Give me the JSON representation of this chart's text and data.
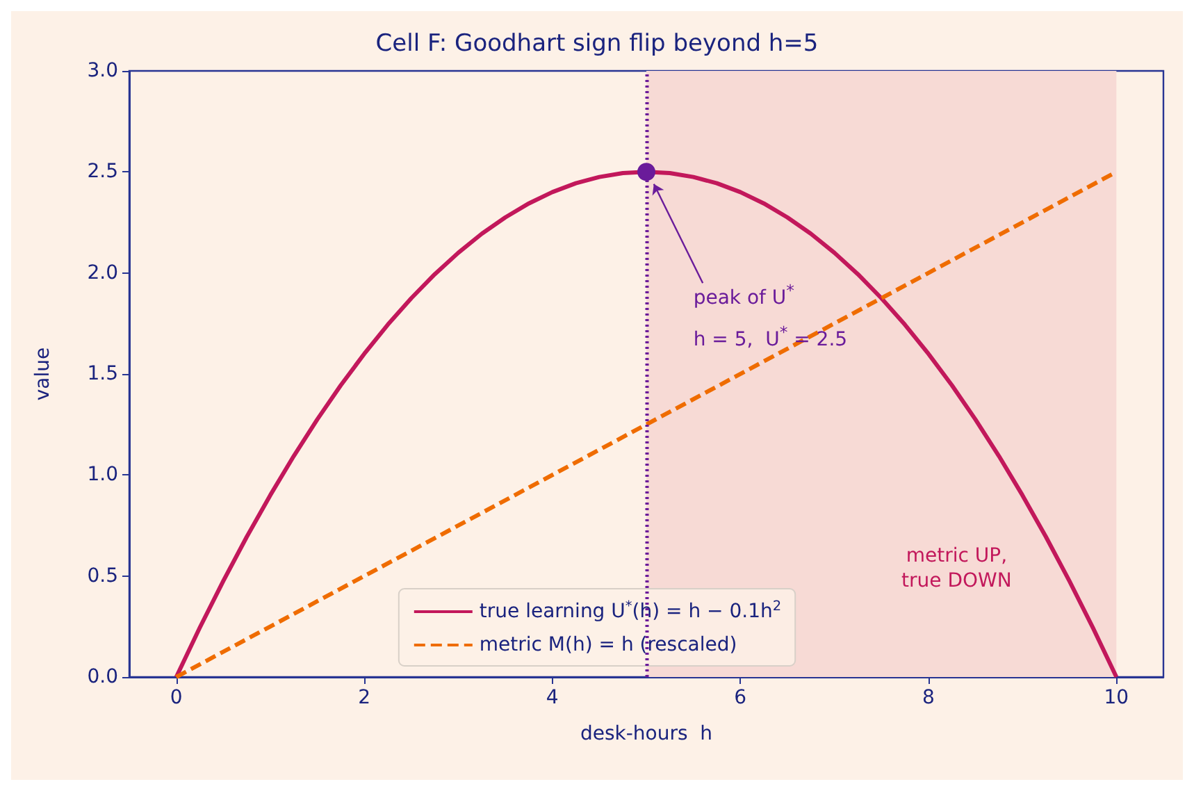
{
  "chart_data": {
    "type": "line",
    "title": "Cell F: Goodhart sign flip beyond h=5",
    "xlabel": "desk-hours  h",
    "ylabel": "value",
    "xlim": [
      -0.5,
      10.5
    ],
    "xticks": [
      0,
      2,
      4,
      6,
      8,
      10
    ],
    "ylim": [
      0,
      3
    ],
    "yticks": [
      {
        "value": 0,
        "label": "0.0"
      },
      {
        "value": 0.5,
        "label": "0.5"
      },
      {
        "value": 1,
        "label": "1.0"
      },
      {
        "value": 1.5,
        "label": "1.5"
      },
      {
        "value": 2,
        "label": "2.0"
      },
      {
        "value": 2.5,
        "label": "2.5"
      },
      {
        "value": 3,
        "label": "3.0"
      }
    ],
    "series": [
      {
        "name": "true learning U$^{*}$(h) = h − 0.1h$^{2}$",
        "color": "#c2185b",
        "line_style": "solid",
        "x": [
          0,
          0.25,
          0.5,
          0.75,
          1,
          1.25,
          1.5,
          1.75,
          2,
          2.25,
          2.5,
          2.75,
          3,
          3.25,
          3.5,
          3.75,
          4,
          4.25,
          4.5,
          4.75,
          5,
          5.25,
          5.5,
          5.75,
          6,
          6.25,
          6.5,
          6.75,
          7,
          7.25,
          7.5,
          7.75,
          8,
          8.25,
          8.5,
          8.75,
          9,
          9.25,
          9.5,
          9.75,
          10
        ],
        "values": [
          0,
          0.244,
          0.475,
          0.694,
          0.9,
          1.094,
          1.275,
          1.444,
          1.6,
          1.744,
          1.875,
          1.994,
          2.1,
          2.194,
          2.275,
          2.344,
          2.4,
          2.444,
          2.475,
          2.494,
          2.5,
          2.494,
          2.475,
          2.444,
          2.4,
          2.344,
          2.275,
          2.194,
          2.1,
          1.994,
          1.875,
          1.744,
          1.6,
          1.444,
          1.275,
          1.094,
          0.9,
          0.694,
          0.475,
          0.244,
          0
        ]
      },
      {
        "name": "metric M(h) = h (rescaled)",
        "color": "#ef6c00",
        "line_style": "dashed",
        "x": [
          0,
          10
        ],
        "values": [
          0,
          2.5
        ]
      },
      {
        "type": "scatter",
        "color": "#6a1b9a",
        "marker": "circle",
        "x": [
          5
        ],
        "values": [
          2.5
        ]
      }
    ],
    "ref_lines": [
      {
        "axis": "x",
        "value": 5,
        "color": "#6a1b9a",
        "line_style": "dotted"
      }
    ],
    "bands": [
      {
        "axis": "x",
        "from": 5,
        "to": 10,
        "color": "#f7dad5"
      }
    ],
    "annotations": [
      "peak of U$^{*}$\nh = 5,  U$^{*}$ = 2.5",
      "metric UP,\ntrue DOWN"
    ],
    "legend": "bottom",
    "grid": false,
    "marker": "none"
  }
}
